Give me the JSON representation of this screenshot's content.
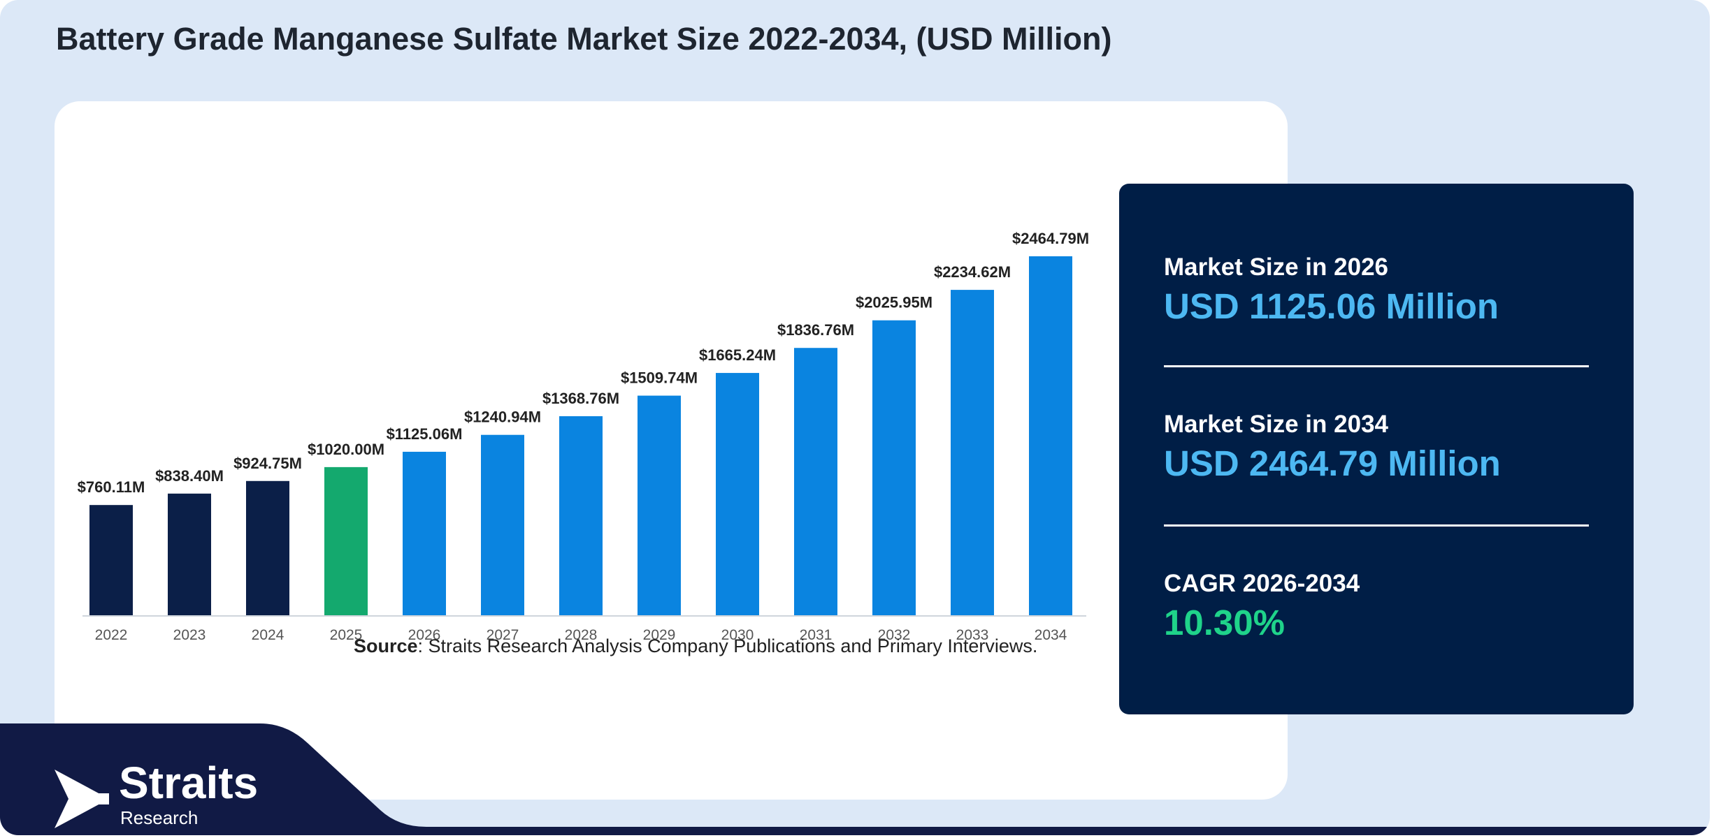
{
  "title": "Battery Grade Manganese Sulfate Market Size 2022-2034, (USD Million)",
  "source_label": "Source",
  "source_text": ": Straits Research Analysis Company Publications and Primary Interviews.",
  "logo": {
    "name": "Straits",
    "sub": "Research"
  },
  "stats": [
    {
      "label": "Market Size in 2026",
      "value": "USD 1125.06 Million",
      "color": "#4db8f2"
    },
    {
      "label": "Market Size in 2034",
      "value": "USD 2464.79 Million",
      "color": "#4db8f2"
    },
    {
      "label": "CAGR 2026-2034",
      "value": "10.30%",
      "color": "#1fd38a"
    }
  ],
  "colors": {
    "historical": "#0b1f48",
    "base_year": "#14a96e",
    "forecast": "#0a84e0",
    "footer": "#111a45"
  },
  "chart_data": {
    "type": "bar",
    "title": "Battery Grade Manganese Sulfate Market Size 2022-2034, (USD Million)",
    "xlabel": "",
    "ylabel": "",
    "ylim": [
      0,
      2464.79
    ],
    "categories": [
      "2022",
      "2023",
      "2024",
      "2025",
      "2026",
      "2027",
      "2028",
      "2029",
      "2030",
      "2031",
      "2032",
      "2033",
      "2034"
    ],
    "values": [
      760.11,
      838.4,
      924.75,
      1020.0,
      1125.06,
      1240.94,
      1368.76,
      1509.74,
      1665.24,
      1836.76,
      2025.95,
      2234.62,
      2464.79
    ],
    "labels": [
      "$760.11M",
      "$838.40M",
      "$924.75M",
      "$1020.00M",
      "$1125.06M",
      "$1240.94M",
      "$1368.76M",
      "$1509.74M",
      "$1665.24M",
      "$1836.76M",
      "$2025.95M",
      "$2234.62M",
      "$2464.79M"
    ],
    "bar_colors": [
      "historical",
      "historical",
      "historical",
      "base_year",
      "forecast",
      "forecast",
      "forecast",
      "forecast",
      "forecast",
      "forecast",
      "forecast",
      "forecast",
      "forecast"
    ],
    "grid": false,
    "legend": "none"
  }
}
